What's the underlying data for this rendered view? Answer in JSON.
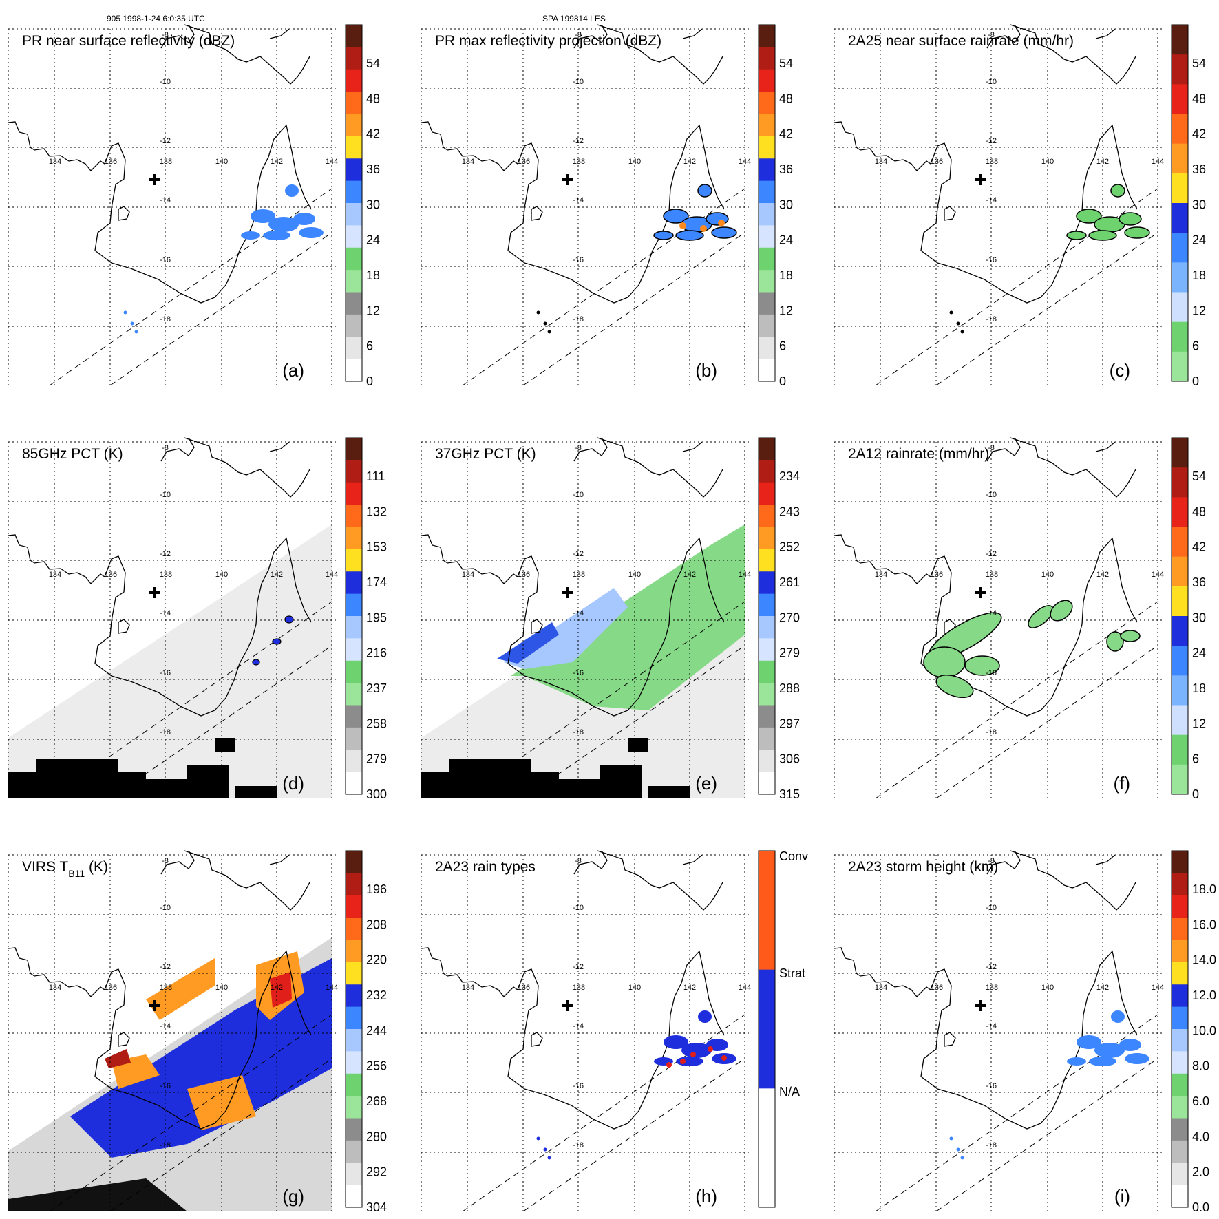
{
  "header": {
    "left": "905 1998-1-24 6:0:35 UTC",
    "middle": "SPA 199814 LES"
  },
  "map": {
    "lon_labels": [
      "134",
      "136",
      "138",
      "140",
      "142",
      "144"
    ],
    "lat_labels": [
      "-8",
      "-10",
      "-12",
      "-14",
      "-16",
      "-18"
    ]
  },
  "colors": {
    "coast": "#000000",
    "grid": "#000000",
    "rain_green": "#7fdd7f",
    "rain_blue": "#1e3ddf",
    "rain_orange": "#ff8a1e",
    "rain_red": "#e01f1a"
  },
  "panels": [
    {
      "id": "a",
      "label": "(a)",
      "title": "PR near surface reflectivity (dBZ)",
      "title_sub": "",
      "cb_ticks": [
        "54",
        "48",
        "42",
        "36",
        "30",
        "24",
        "18",
        "12",
        "6",
        "0"
      ],
      "cb_colors": [
        "#5a1e10",
        "#b01d14",
        "#e8241a",
        "#ff6a1a",
        "#ff9a22",
        "#ffe020",
        "#1e2edc",
        "#3c86ff",
        "#a6c8ff",
        "#d6e4ff",
        "#6ed36e",
        "#9be59b",
        "#8c8c8c",
        "#bdbdbd",
        "#e6e6e6",
        "#ffffff"
      ],
      "swath": "pr"
    },
    {
      "id": "b",
      "label": "(b)",
      "title": "PR max reflectivity projection (dBZ)",
      "title_sub": "",
      "cb_ticks": [
        "54",
        "48",
        "42",
        "36",
        "30",
        "24",
        "18",
        "12",
        "6",
        "0"
      ],
      "cb_colors": [
        "#5a1e10",
        "#b01d14",
        "#e8241a",
        "#ff6a1a",
        "#ff9a22",
        "#ffe020",
        "#1e2edc",
        "#3c86ff",
        "#a6c8ff",
        "#d6e4ff",
        "#6ed36e",
        "#9be59b",
        "#8c8c8c",
        "#bdbdbd",
        "#e6e6e6",
        "#ffffff"
      ],
      "swath": "pr"
    },
    {
      "id": "c",
      "label": "(c)",
      "title": "2A25 near surface rainrate (mm/hr)",
      "title_sub": "",
      "cb_ticks": [
        "54",
        "48",
        "42",
        "36",
        "30",
        "24",
        "18",
        "12",
        "6",
        "0"
      ],
      "cb_colors": [
        "#5a1e10",
        "#b01d14",
        "#e8241a",
        "#ff6a1a",
        "#ff9a22",
        "#ffe020",
        "#1e2edc",
        "#3c86ff",
        "#7ab4ff",
        "#cfe0ff",
        "#6ed36e",
        "#9be59b"
      ],
      "swath": "pr"
    },
    {
      "id": "d",
      "label": "(d)",
      "title": "85GHz PCT (K)",
      "title_sub": "",
      "cb_ticks": [
        "111",
        "132",
        "153",
        "174",
        "195",
        "216",
        "237",
        "258",
        "279",
        "300"
      ],
      "cb_colors": [
        "#5a1e10",
        "#b01d14",
        "#e8241a",
        "#ff6a1a",
        "#ff9a22",
        "#ffe020",
        "#1e2edc",
        "#3c86ff",
        "#a6c8ff",
        "#d6e4ff",
        "#6ed36e",
        "#9be59b",
        "#8c8c8c",
        "#bdbdbd",
        "#e6e6e6",
        "#ffffff"
      ],
      "swath": "tmi"
    },
    {
      "id": "e",
      "label": "(e)",
      "title": "37GHz PCT (K)",
      "title_sub": "",
      "cb_ticks": [
        "234",
        "243",
        "252",
        "261",
        "270",
        "279",
        "288",
        "297",
        "306",
        "315"
      ],
      "cb_colors": [
        "#5a1e10",
        "#b01d14",
        "#e8241a",
        "#ff6a1a",
        "#ff9a22",
        "#ffe020",
        "#1e2edc",
        "#3c86ff",
        "#a6c8ff",
        "#d6e4ff",
        "#6ed36e",
        "#9be59b",
        "#8c8c8c",
        "#bdbdbd",
        "#e6e6e6",
        "#ffffff"
      ],
      "swath": "tmi"
    },
    {
      "id": "f",
      "label": "(f)",
      "title": "2A12 rainrate (mm/hr)",
      "title_sub": "",
      "cb_ticks": [
        "54",
        "48",
        "42",
        "36",
        "30",
        "24",
        "18",
        "12",
        "6",
        "0"
      ],
      "cb_colors": [
        "#5a1e10",
        "#b01d14",
        "#e8241a",
        "#ff6a1a",
        "#ff9a22",
        "#ffe020",
        "#1e2edc",
        "#3c86ff",
        "#7ab4ff",
        "#cfe0ff",
        "#6ed36e",
        "#9be59b"
      ],
      "swath": "pr"
    },
    {
      "id": "g",
      "label": "(g)",
      "title": "VIRS T",
      "title_sub": "B11",
      "title_suffix": " (K)",
      "cb_ticks": [
        "196",
        "208",
        "220",
        "232",
        "244",
        "256",
        "268",
        "280",
        "292",
        "304"
      ],
      "cb_colors": [
        "#5a1e10",
        "#b01d14",
        "#e8241a",
        "#ff6a1a",
        "#ff9a22",
        "#ffe020",
        "#1e2edc",
        "#3c86ff",
        "#a6c8ff",
        "#d6e4ff",
        "#6ed36e",
        "#9be59b",
        "#8c8c8c",
        "#bdbdbd",
        "#e6e6e6",
        "#ffffff"
      ],
      "swath": "virs"
    },
    {
      "id": "h",
      "label": "(h)",
      "title": "2A23 rain types",
      "title_sub": "",
      "cb_ticks": [
        "Conv",
        "Strat",
        "N/A"
      ],
      "cb_colors": [
        "#ff5a1a",
        "#1e2edc",
        "#ffffff"
      ],
      "swath": "pr"
    },
    {
      "id": "i",
      "label": "(i)",
      "title": "2A23 storm height (km)",
      "title_sub": "",
      "cb_ticks": [
        "18.0",
        "16.0",
        "14.0",
        "12.0",
        "10.0",
        "8.0",
        "6.0",
        "4.0",
        "2.0",
        "0.0"
      ],
      "cb_colors": [
        "#5a1e10",
        "#b01d14",
        "#e8241a",
        "#ff6a1a",
        "#ff9a22",
        "#ffe020",
        "#1e2edc",
        "#3c86ff",
        "#a6c8ff",
        "#d6e4ff",
        "#6ed36e",
        "#9be59b",
        "#8c8c8c",
        "#bdbdbd",
        "#e6e6e6",
        "#ffffff"
      ],
      "swath": "pr"
    }
  ]
}
